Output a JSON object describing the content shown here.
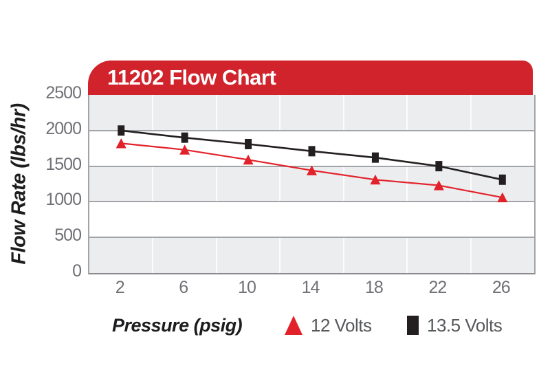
{
  "header": {
    "title": "11202 Flow Chart"
  },
  "y_axis": {
    "title": "Flow Rate (lbs/hr)",
    "ticks": [
      "2500",
      "2000",
      "1500",
      "1000",
      "500",
      "0"
    ]
  },
  "x_axis": {
    "title": "Pressure (psig)",
    "ticks": [
      "2",
      "6",
      "10",
      "14",
      "18",
      "22",
      "26"
    ]
  },
  "legend": [
    {
      "label": "12 Volts",
      "marker": "red-triangle"
    },
    {
      "label": "13.5 Volts",
      "marker": "black-square"
    }
  ],
  "colors": {
    "header_red": "#d0232b",
    "series_red": "#e2222b",
    "series_black": "#231f20",
    "band_gray": "#ecedee",
    "gridline_gray": "#a2a4a7",
    "tick_text_gray": "#707175",
    "legend_text_gray": "#57585b",
    "title_text": "#ffffff"
  },
  "chart_data": {
    "type": "line",
    "title": "11202 Flow Chart",
    "xlabel": "Pressure (psig)",
    "ylabel": "Flow Rate (lbs/hr)",
    "categories": [
      2,
      6,
      10,
      14,
      18,
      22,
      26
    ],
    "series": [
      {
        "name": "12 Volts",
        "marker": "triangle",
        "color": "#e2222b",
        "values": [
          1820,
          1730,
          1590,
          1440,
          1310,
          1230,
          1060
        ]
      },
      {
        "name": "13.5 Volts",
        "marker": "square",
        "color": "#231f20",
        "values": [
          2000,
          1900,
          1810,
          1710,
          1620,
          1500,
          1310
        ]
      }
    ],
    "ylim": [
      0,
      2500
    ],
    "ytick_step": 500,
    "grid": "horizontal gridlines every 500; light vertical separators between categories; alternating gray/white bands",
    "legend_position": "bottom"
  }
}
